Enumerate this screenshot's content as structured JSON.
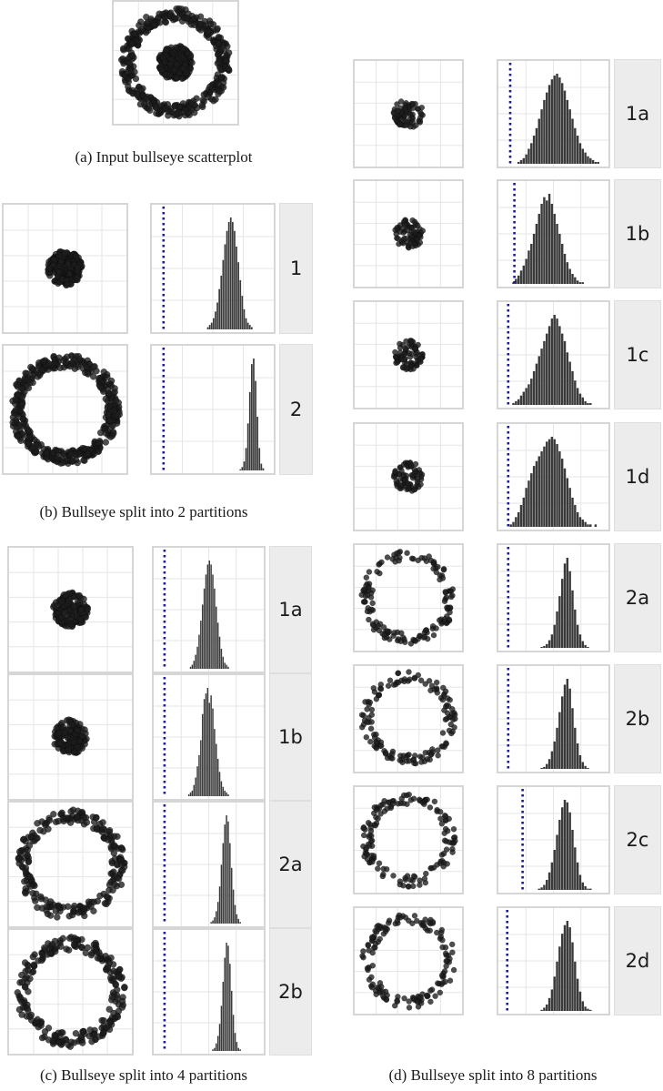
{
  "captions": {
    "a": "(a) Input bullseye scatterplot",
    "b": "(b) Bullseye split into 2 partitions",
    "c": "(c) Bullseye split into 4 partitions",
    "d": "(d) Bullseye split into 8 partitions"
  },
  "colors": {
    "points": "#1c1c1c",
    "bars": "#3a3a3a",
    "reference_line": "#1a1a9a",
    "grid": "#e6e6e6",
    "strip": "#ececec"
  },
  "chart_data": [
    {
      "id": "a",
      "type": "scatter",
      "shape": "bullseye",
      "components": [
        {
          "shape": "disc",
          "center": [
            0,
            0
          ],
          "radius": 0.3,
          "count": 220
        },
        {
          "shape": "ring",
          "center": [
            0,
            0
          ],
          "inner_radius": 0.72,
          "outer_radius": 0.95,
          "count": 380
        }
      ]
    },
    {
      "id": "b",
      "type": "histogram",
      "note": "scatter partitions with null-distribution histograms; dotted line marks observed value",
      "partitions": [
        {
          "label": "1",
          "scatter": {
            "shape": "disc",
            "radius": 0.3,
            "count": 260
          },
          "reference_x": 0.07,
          "hist": [
            0,
            0,
            0,
            0,
            0,
            0,
            0,
            0,
            0,
            0,
            0,
            0,
            0,
            0,
            0,
            0,
            0,
            0,
            0,
            0,
            0,
            0,
            0,
            0,
            0,
            0,
            0,
            1,
            2,
            3,
            5,
            8,
            12,
            18,
            24,
            31,
            38,
            44,
            48,
            50,
            48,
            44,
            37,
            30,
            22,
            15,
            9,
            5,
            3,
            2,
            1,
            0,
            0,
            0,
            0,
            0,
            0,
            0,
            0,
            0
          ]
        },
        {
          "label": "2",
          "scatter": {
            "shape": "ring",
            "inner_radius": 0.72,
            "outer_radius": 0.95,
            "count": 420
          },
          "reference_x": 0.07,
          "hist": [
            0,
            0,
            0,
            0,
            0,
            0,
            0,
            0,
            0,
            0,
            0,
            0,
            0,
            0,
            0,
            0,
            0,
            0,
            0,
            0,
            0,
            0,
            0,
            0,
            0,
            0,
            0,
            0,
            0,
            0,
            0,
            0,
            0,
            0,
            0,
            0,
            0,
            0,
            0,
            0,
            0,
            0,
            0,
            0,
            1,
            3,
            8,
            20,
            42,
            70,
            95,
            100,
            80,
            48,
            20,
            6,
            2,
            0,
            0,
            0
          ]
        }
      ]
    },
    {
      "id": "c",
      "type": "histogram",
      "partitions": [
        {
          "label": "1a",
          "scatter": {
            "shape": "disc",
            "radius": 0.3,
            "count": 140
          },
          "reference_x": 0.07,
          "hist": [
            0,
            0,
            0,
            0,
            0,
            0,
            0,
            0,
            0,
            0,
            0,
            0,
            0,
            0,
            0,
            0,
            0,
            0,
            0,
            1,
            2,
            4,
            7,
            11,
            17,
            24,
            32,
            40,
            47,
            52,
            54,
            52,
            47,
            40,
            31,
            23,
            16,
            10,
            6,
            3,
            2,
            1,
            0,
            0,
            0,
            0,
            0,
            0,
            0,
            0,
            0,
            0,
            0,
            0,
            0,
            0,
            0,
            0,
            0,
            0
          ]
        },
        {
          "label": "1b",
          "scatter": {
            "shape": "disc",
            "radius": 0.3,
            "count": 140
          },
          "reference_x": 0.07,
          "hist": [
            0,
            0,
            0,
            0,
            0,
            0,
            0,
            0,
            0,
            0,
            0,
            0,
            0,
            0,
            0,
            0,
            0,
            0,
            1,
            2,
            3,
            6,
            10,
            16,
            22,
            30,
            44,
            52,
            55,
            58,
            50,
            54,
            47,
            36,
            28,
            20,
            13,
            8,
            5,
            3,
            2,
            1,
            0,
            0,
            0,
            0,
            0,
            0,
            0,
            0,
            0,
            0,
            0,
            0,
            0,
            0,
            0,
            0,
            0,
            0
          ]
        },
        {
          "label": "2a",
          "scatter": {
            "shape": "ring",
            "inner_radius": 0.72,
            "outer_radius": 0.95,
            "count": 230
          },
          "reference_x": 0.07,
          "hist": [
            0,
            0,
            0,
            0,
            0,
            0,
            0,
            0,
            0,
            0,
            0,
            0,
            0,
            0,
            0,
            0,
            0,
            0,
            0,
            0,
            0,
            0,
            0,
            0,
            0,
            0,
            0,
            0,
            0,
            0,
            0,
            1,
            2,
            4,
            8,
            14,
            24,
            38,
            52,
            64,
            70,
            66,
            52,
            36,
            22,
            12,
            6,
            3,
            1,
            0,
            0,
            0,
            0,
            0,
            0,
            0,
            0,
            0,
            0,
            0
          ]
        },
        {
          "label": "2b",
          "scatter": {
            "shape": "ring",
            "inner_radius": 0.72,
            "outer_radius": 0.95,
            "count": 230
          },
          "reference_x": 0.07,
          "hist": [
            0,
            0,
            0,
            0,
            0,
            0,
            0,
            0,
            0,
            0,
            0,
            0,
            0,
            0,
            0,
            0,
            0,
            0,
            0,
            0,
            0,
            0,
            0,
            0,
            0,
            0,
            0,
            0,
            0,
            0,
            0,
            0,
            1,
            2,
            5,
            10,
            18,
            30,
            46,
            62,
            72,
            70,
            58,
            40,
            24,
            12,
            6,
            2,
            1,
            0,
            0,
            0,
            0,
            0,
            0,
            0,
            0,
            0,
            0,
            0
          ]
        }
      ]
    },
    {
      "id": "d",
      "type": "histogram",
      "partitions": [
        {
          "label": "1a",
          "scatter": {
            "shape": "disc",
            "radius": 0.3,
            "count": 75
          },
          "reference_x": 0.08,
          "hist": [
            0,
            0,
            0,
            0,
            0,
            0,
            1,
            2,
            3,
            5,
            8,
            11,
            15,
            19,
            24,
            29,
            34,
            38,
            42,
            45,
            47,
            48,
            46,
            43,
            39,
            34,
            29,
            24,
            19,
            15,
            11,
            8,
            6,
            4,
            3,
            2,
            1,
            1,
            0,
            0
          ]
        },
        {
          "label": "1b",
          "scatter": {
            "shape": "disc",
            "radius": 0.3,
            "count": 75
          },
          "reference_x": 0.12,
          "hist": [
            0,
            0,
            0,
            0,
            1,
            3,
            5,
            8,
            11,
            15,
            20,
            24,
            30,
            36,
            42,
            48,
            52,
            50,
            54,
            48,
            42,
            36,
            30,
            24,
            18,
            13,
            9,
            6,
            4,
            2,
            1,
            1,
            0,
            0,
            0,
            0,
            0,
            0,
            0,
            0
          ]
        },
        {
          "label": "1c",
          "scatter": {
            "shape": "disc",
            "radius": 0.3,
            "count": 75
          },
          "reference_x": 0.06,
          "hist": [
            0,
            0,
            0,
            0,
            1,
            2,
            3,
            5,
            7,
            9,
            11,
            14,
            18,
            22,
            26,
            30,
            34,
            38,
            42,
            46,
            48,
            46,
            42,
            38,
            34,
            28,
            23,
            18,
            13,
            9,
            6,
            4,
            2,
            1,
            1,
            0,
            0,
            0,
            0,
            0
          ]
        },
        {
          "label": "1d",
          "scatter": {
            "shape": "disc",
            "radius": 0.3,
            "count": 75
          },
          "reference_x": 0.06,
          "hist": [
            0,
            0,
            0,
            1,
            2,
            4,
            6,
            9,
            12,
            16,
            19,
            22,
            25,
            27,
            29,
            31,
            33,
            35,
            36,
            37,
            36,
            34,
            31,
            28,
            24,
            20,
            16,
            12,
            9,
            6,
            4,
            3,
            2,
            1,
            1,
            0,
            1,
            0,
            0,
            0
          ]
        },
        {
          "label": "2a",
          "scatter": {
            "shape": "ring",
            "inner_radius": 0.72,
            "outer_radius": 0.95,
            "count": 140
          },
          "reference_x": 0.06,
          "hist": [
            0,
            0,
            0,
            0,
            0,
            0,
            0,
            0,
            0,
            0,
            0,
            0,
            0,
            0,
            0,
            1,
            2,
            4,
            8,
            14,
            24,
            38,
            54,
            72,
            88,
            94,
            80,
            60,
            40,
            24,
            14,
            7,
            3,
            1,
            0,
            0,
            0,
            0,
            0,
            0
          ]
        },
        {
          "label": "2b",
          "scatter": {
            "shape": "ring",
            "inner_radius": 0.72,
            "outer_radius": 0.95,
            "count": 140
          },
          "reference_x": 0.06,
          "hist": [
            0,
            0,
            0,
            0,
            0,
            0,
            0,
            0,
            0,
            0,
            0,
            0,
            0,
            0,
            0,
            1,
            2,
            5,
            10,
            18,
            28,
            42,
            58,
            74,
            86,
            92,
            82,
            62,
            42,
            26,
            14,
            7,
            3,
            1,
            0,
            0,
            0,
            0,
            0,
            0
          ]
        },
        {
          "label": "2c",
          "scatter": {
            "shape": "ring",
            "inner_radius": 0.72,
            "outer_radius": 0.95,
            "count": 140
          },
          "reference_x": 0.2,
          "hist": [
            0,
            0,
            0,
            0,
            0,
            0,
            0,
            0,
            0,
            0,
            0,
            0,
            0,
            0,
            1,
            2,
            4,
            8,
            14,
            22,
            32,
            44,
            56,
            66,
            72,
            70,
            62,
            48,
            34,
            22,
            12,
            6,
            3,
            1,
            1,
            0,
            0,
            0,
            0,
            0
          ]
        },
        {
          "label": "2d",
          "scatter": {
            "shape": "ring",
            "inner_radius": 0.72,
            "outer_radius": 0.95,
            "count": 140
          },
          "reference_x": 0.05,
          "hist": [
            0,
            0,
            0,
            0,
            0,
            0,
            0,
            0,
            0,
            0,
            0,
            0,
            0,
            0,
            0,
            1,
            3,
            6,
            12,
            20,
            32,
            46,
            60,
            72,
            80,
            84,
            78,
            64,
            46,
            30,
            18,
            9,
            4,
            2,
            1,
            0,
            0,
            0,
            0,
            0
          ]
        }
      ]
    }
  ]
}
